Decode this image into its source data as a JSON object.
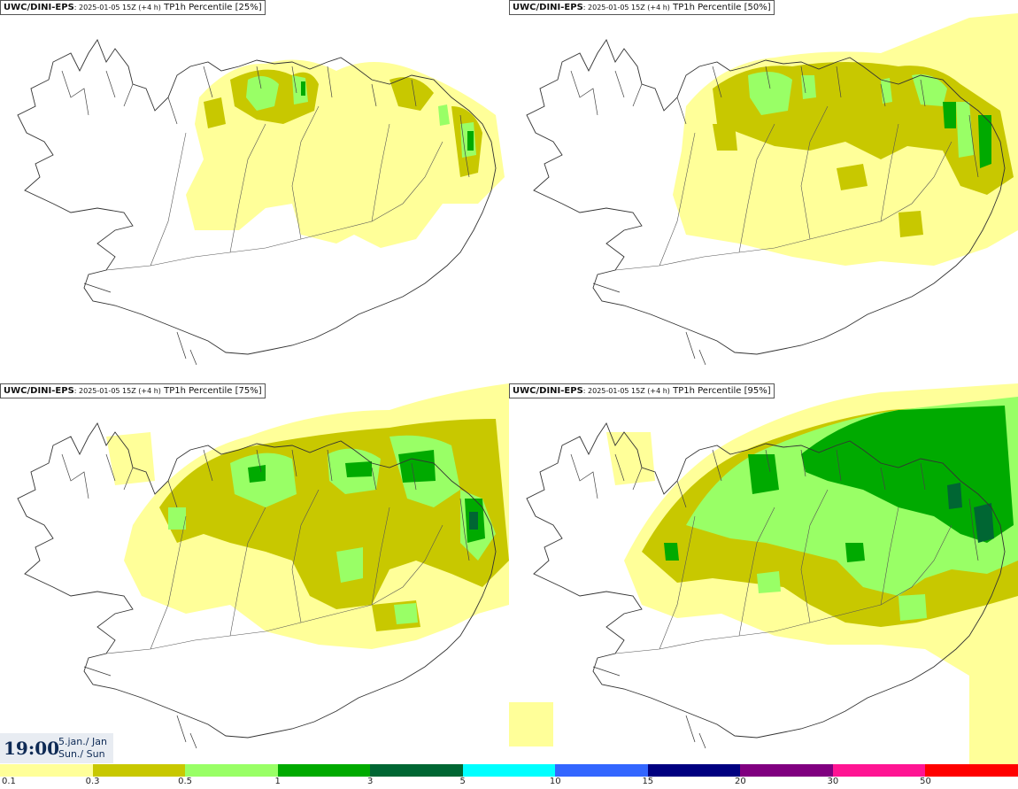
{
  "panels": [
    {
      "model": "UWC/DINI-EPS",
      "run": "2025-01-05 15Z (+4 h)",
      "product": "TP1h Percentile [25%]"
    },
    {
      "model": "UWC/DINI-EPS",
      "run": "2025-01-05 15Z (+4 h)",
      "product": "TP1h Percentile [50%]"
    },
    {
      "model": "UWC/DINI-EPS",
      "run": "2025-01-05 15Z (+4 h)",
      "product": "TP1h Percentile [75%]"
    },
    {
      "model": "UWC/DINI-EPS",
      "run": "2025-01-05 15Z (+4 h)",
      "product": "TP1h Percentile [95%]"
    }
  ],
  "valid_time": {
    "time": "19:00",
    "date_line1": "5.jan./ Jan",
    "date_line2": "Sun./ Sun"
  },
  "colorbar": {
    "colors": [
      "#ffff99",
      "#c8c800",
      "#99ff66",
      "#00aa00",
      "#006633",
      "#00ffff",
      "#3366ff",
      "#000080",
      "#800080",
      "#ff1493",
      "#ff0000"
    ],
    "labels": [
      "0.1",
      "0.3",
      "0.5",
      "1",
      "3",
      "5",
      "10",
      "15",
      "20",
      "30",
      "50"
    ]
  }
}
